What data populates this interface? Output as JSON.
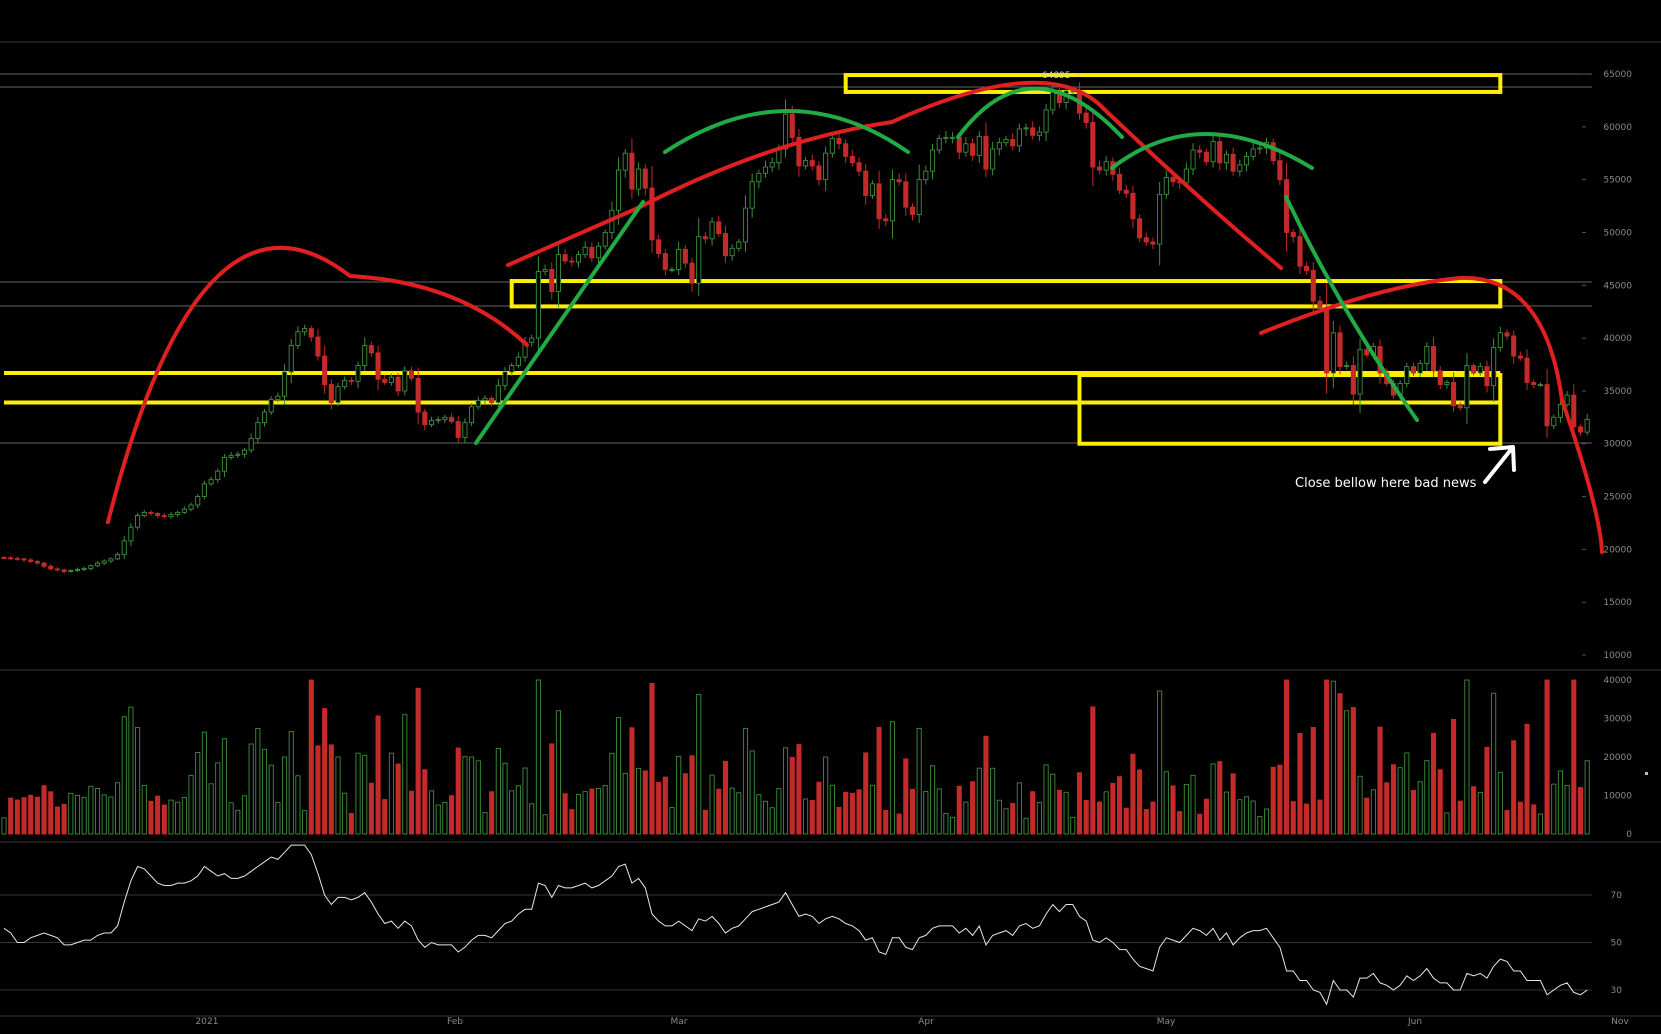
{
  "chart_data": [
    {
      "type": "candlestick",
      "ylim": [
        10000,
        65000
      ],
      "y_ticks": [
        "65000",
        "60000",
        "55000",
        "50000",
        "45000",
        "40000",
        "35000",
        "30000",
        "25000",
        "20000",
        "15000",
        "10000"
      ],
      "x_ticks": [
        "2021",
        "Feb",
        "Mar",
        "Apr",
        "May",
        "Jun",
        "Nov"
      ],
      "peak_label": "64895 →",
      "annotation": "Close bellow here bad news",
      "colors": {
        "up": "#3d8f3d",
        "down": "#c42a2a",
        "zone": "#ffee00",
        "arc": "#e02020",
        "trend": "#22aa44"
      },
      "grid": false,
      "zones": [
        {
          "x0": "2021-04-14",
          "x1": "2021-07-21",
          "y0": 63300,
          "y1": 64900
        },
        {
          "x0": "2021-02-23",
          "x1": "2021-07-21",
          "y0": 43000,
          "y1": 45400
        },
        {
          "x0": "2020-12-09",
          "x1": "2021-07-21",
          "y0": 36700,
          "y1": 36700
        },
        {
          "x0": "2020-12-09",
          "x1": "2021-07-21",
          "y0": 33900,
          "y1": 33900
        },
        {
          "x0": "2021-05-19",
          "x1": "2021-07-21",
          "y0": 30000,
          "y1": 36500
        }
      ],
      "price_closes": [
        19200,
        19150,
        19100,
        19000,
        18850,
        18700,
        18400,
        18150,
        18050,
        17900,
        18000,
        18100,
        18200,
        18450,
        18700,
        18900,
        19100,
        19500,
        20800,
        22100,
        23200,
        23500,
        23400,
        23200,
        23100,
        23300,
        23500,
        23800,
        24200,
        25000,
        26200,
        26600,
        27400,
        28700,
        28900,
        29000,
        29400,
        30500,
        32000,
        33000,
        34200,
        34500,
        36800,
        39300,
        40600,
        40900,
        40100,
        38300,
        35600,
        33900,
        35400,
        36000,
        35900,
        37400,
        39300,
        38600,
        36100,
        35800,
        36300,
        35000,
        36900,
        36200,
        33000,
        31800,
        32200,
        32300,
        32500,
        32100,
        30600,
        32000,
        33500,
        34100,
        34300,
        33900,
        35500,
        36800,
        37400,
        38200,
        39600,
        40000,
        46300,
        46500,
        44400,
        47900,
        47300,
        47200,
        47900,
        48600,
        47600,
        48700,
        50000,
        52100,
        55900,
        57500,
        54100,
        56000,
        54200,
        49300,
        48000,
        46500,
        46500,
        48400,
        47100,
        45200,
        49600,
        49400,
        51000,
        49900,
        47800,
        48500,
        49100,
        52300,
        54800,
        55600,
        56200,
        56600,
        57900,
        61200,
        59000,
        56300,
        56800,
        56300,
        55000,
        57500,
        58900,
        58400,
        57200,
        56600,
        55800,
        53500,
        54600,
        51300,
        51100,
        55000,
        54800,
        52400,
        51700,
        55000,
        55800,
        57800,
        58900,
        59000,
        59000,
        57600,
        58400,
        57300,
        59100,
        56000,
        57900,
        58500,
        58800,
        58200,
        59800,
        59900,
        59200,
        59500,
        61600,
        63400,
        62300,
        63400,
        63400,
        61300,
        60400,
        56200,
        55900,
        56700,
        55500,
        54000,
        53700,
        51300,
        49500,
        49100,
        48900,
        53600,
        55200,
        54800,
        54700,
        56000,
        57800,
        57600,
        56700,
        58600,
        56600,
        57400,
        55800,
        56400,
        57200,
        57900,
        58000,
        58500,
        56800,
        55000,
        50000,
        49600,
        46800,
        46400,
        43500,
        42900,
        36700,
        40500,
        37300,
        37400,
        34700,
        38900,
        38400,
        39200,
        36700,
        35700,
        34600,
        35700,
        37300,
        36700,
        37600,
        39200,
        36900,
        35600,
        35800,
        33600,
        33400,
        37400,
        36700,
        37300,
        35500,
        39100,
        40500,
        40200,
        38300,
        38100,
        35800,
        35600,
        35600,
        31700,
        32500,
        33700,
        34600,
        31600,
        31100,
        32300
      ]
    },
    {
      "type": "bar",
      "ylim": [
        0,
        40000
      ],
      "y_ticks": [
        "40000",
        "30000",
        "20000",
        "10000",
        "0"
      ]
    },
    {
      "type": "line",
      "y_ticks": [
        "70",
        "50",
        "30"
      ],
      "values": [
        56,
        54,
        50,
        50,
        52,
        53,
        54,
        53,
        52,
        49,
        49,
        50,
        51,
        51,
        53,
        54,
        54,
        57,
        67,
        76,
        82,
        81,
        78,
        75,
        74,
        74,
        75,
        75,
        76,
        78,
        82,
        80,
        78,
        79,
        77,
        77,
        78,
        80,
        82,
        84,
        86,
        85,
        88,
        91,
        91,
        91,
        87,
        79,
        70,
        66,
        69,
        69,
        68,
        69,
        71,
        67,
        62,
        58,
        59,
        56,
        59,
        57,
        51,
        48,
        50,
        49,
        49,
        49,
        46,
        48,
        51,
        53,
        53,
        52,
        55,
        58,
        59,
        62,
        64,
        64,
        75,
        74,
        69,
        74,
        73,
        73,
        74,
        75,
        73,
        74,
        76,
        78,
        82,
        83,
        75,
        77,
        73,
        62,
        59,
        57,
        57,
        59,
        57,
        55,
        60,
        59,
        61,
        58,
        54,
        56,
        57,
        60,
        63,
        64,
        65,
        66,
        67,
        71,
        66,
        61,
        62,
        61,
        58,
        60,
        61,
        60,
        58,
        57,
        55,
        51,
        52,
        46,
        45,
        52,
        52,
        48,
        47,
        52,
        53,
        56,
        57,
        57,
        57,
        54,
        56,
        53,
        57,
        49,
        53,
        54,
        55,
        53,
        57,
        58,
        56,
        57,
        62,
        66,
        63,
        66,
        66,
        61,
        59,
        51,
        50,
        52,
        50,
        47,
        47,
        43,
        40,
        39,
        38,
        48,
        52,
        51,
        50,
        53,
        56,
        55,
        53,
        56,
        51,
        54,
        49,
        52,
        54,
        55,
        55,
        56,
        52,
        48,
        38,
        38,
        34,
        34,
        30,
        29,
        24,
        34,
        30,
        30,
        27,
        35,
        35,
        37,
        33,
        32,
        30,
        32,
        36,
        34,
        36,
        39,
        35,
        33,
        33,
        30,
        30,
        37,
        36,
        37,
        35,
        40,
        43,
        42,
        38,
        38,
        34,
        34,
        34,
        28,
        30,
        32,
        33,
        29,
        28,
        30
      ]
    }
  ]
}
